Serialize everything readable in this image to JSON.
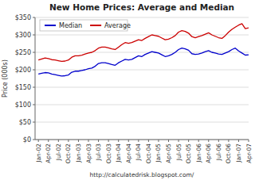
{
  "chart_data": {
    "type": "line",
    "title": "New Home Prices: Average and Median",
    "ylabel": "Price (000s)",
    "xlabel": "http://calculatedrisk.blogspot.com/",
    "categories": [
      "Jan-02",
      null,
      null,
      "Apr-02",
      null,
      null,
      "Jul-02",
      null,
      null,
      "Oct-02",
      null,
      null,
      "Jan-03",
      null,
      null,
      "Apr-03",
      null,
      null,
      "Jul-03",
      null,
      null,
      "Oct-03",
      null,
      null,
      "Jan-04",
      null,
      null,
      "Apr-04",
      null,
      null,
      "Jul-04",
      null,
      null,
      "Oct-04",
      null,
      null,
      "Jan-05",
      null,
      null,
      "Apr-05",
      null,
      null,
      "Jul-05",
      null,
      null,
      "Oct-05",
      null,
      null,
      "Jan-06",
      null,
      null,
      "Apr-06",
      null,
      null,
      "Jul-06",
      null,
      null,
      "Oct-06",
      null,
      null,
      "Jan-07",
      null,
      null,
      "Apr-07"
    ],
    "series": [
      {
        "name": "Median",
        "color": "#0000cc",
        "values": [
          188,
          190,
          192,
          191,
          188,
          186,
          184,
          182,
          183,
          185,
          193,
          196,
          196,
          198,
          200,
          203,
          205,
          210,
          218,
          220,
          220,
          218,
          215,
          213,
          220,
          225,
          230,
          228,
          230,
          235,
          240,
          238,
          244,
          248,
          252,
          250,
          248,
          243,
          238,
          240,
          244,
          250,
          258,
          262,
          260,
          256,
          246,
          244,
          245,
          248,
          252,
          255,
          250,
          248,
          245,
          244,
          248,
          252,
          258,
          262,
          254,
          248,
          242,
          243
        ]
      },
      {
        "name": "Average",
        "color": "#cc0000",
        "values": [
          228,
          231,
          234,
          232,
          229,
          228,
          226,
          224,
          225,
          228,
          236,
          240,
          240,
          242,
          245,
          248,
          250,
          255,
          262,
          265,
          265,
          263,
          260,
          258,
          265,
          272,
          278,
          276,
          278,
          282,
          286,
          284,
          290,
          295,
          300,
          298,
          296,
          291,
          286,
          288,
          292,
          298,
          308,
          312,
          310,
          305,
          295,
          292,
          295,
          298,
          302,
          306,
          300,
          296,
          292,
          290,
          298,
          308,
          316,
          322,
          328,
          332,
          318,
          320
        ]
      }
    ],
    "ylim": [
      0,
      350
    ],
    "yticks": [
      {
        "value": 0,
        "label": "$0"
      },
      {
        "value": 50,
        "label": "$50"
      },
      {
        "value": 100,
        "label": "$100"
      },
      {
        "value": 150,
        "label": "$150"
      },
      {
        "value": 200,
        "label": "$200"
      },
      {
        "value": 250,
        "label": "$250"
      },
      {
        "value": 300,
        "label": "$300"
      },
      {
        "value": 350,
        "label": "$350"
      }
    ],
    "grid": true,
    "legend": "upper left"
  }
}
